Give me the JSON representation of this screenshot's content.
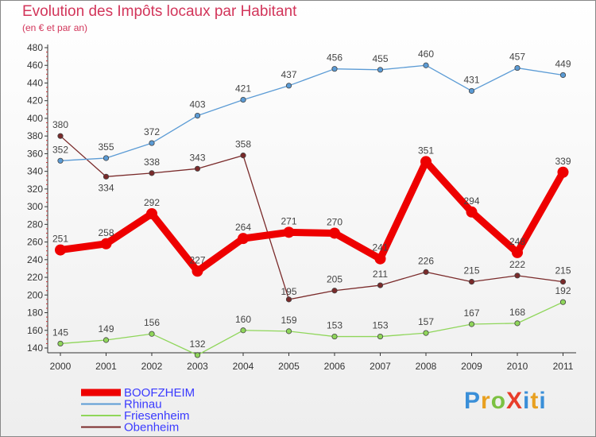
{
  "chart_data": {
    "type": "line",
    "title": "Evolution des Impôts locaux par Habitant",
    "subtitle": "(en € et par an)",
    "xlabel": "",
    "ylabel": "",
    "ylim": [
      140,
      480
    ],
    "yticks": [
      140,
      160,
      180,
      200,
      220,
      240,
      260,
      280,
      300,
      320,
      340,
      360,
      380,
      400,
      420,
      440,
      460,
      480
    ],
    "categories": [
      "2000",
      "2001",
      "2002",
      "2003",
      "2004",
      "2005",
      "2006",
      "2007",
      "2008",
      "2009",
      "2010",
      "2011"
    ],
    "series": [
      {
        "name": "BOOFZHEIM",
        "color": "#ee0000",
        "values": [
          251,
          258,
          292,
          227,
          264,
          271,
          270,
          241,
          351,
          294,
          248,
          339
        ]
      },
      {
        "name": "Rhinau",
        "color": "#5b9bd5",
        "values": [
          352,
          355,
          372,
          403,
          421,
          437,
          456,
          455,
          460,
          431,
          457,
          449
        ]
      },
      {
        "name": "Friesenheim",
        "color": "#8fd65a",
        "values": [
          145,
          149,
          156,
          132,
          160,
          159,
          153,
          153,
          157,
          167,
          168,
          192
        ]
      },
      {
        "name": "Obenheim",
        "color": "#7a2a2a",
        "values": [
          380,
          334,
          338,
          343,
          358,
          195,
          205,
          211,
          226,
          215,
          222,
          215
        ]
      }
    ],
    "legend_position": "bottom-left",
    "grid": false
  },
  "logo": {
    "text": "ProXiti",
    "letters": [
      "P",
      "r",
      "o",
      "X",
      "i",
      "t",
      "i"
    ]
  }
}
